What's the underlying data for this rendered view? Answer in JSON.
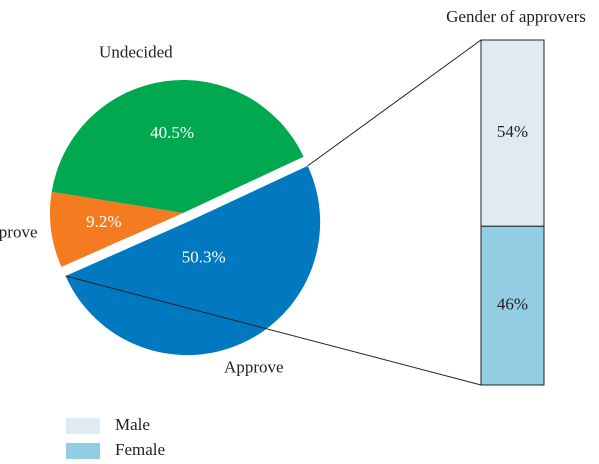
{
  "chart_data": [
    {
      "type": "pie",
      "categories": [
        "Approve",
        "Disapprove",
        "Undecided"
      ],
      "values": [
        50.3,
        9.2,
        40.5
      ],
      "value_labels": [
        "50.3%",
        "9.2%",
        "40.5%"
      ],
      "colors": [
        "#0079c1",
        "#f47b20",
        "#00a84f"
      ]
    },
    {
      "type": "stacked_bar",
      "title": "Gender of approvers",
      "series": [
        {
          "name": "Male",
          "color": "#dfeaf2",
          "values": [
            54
          ],
          "value_labels": [
            "54%"
          ]
        },
        {
          "name": "Female",
          "color": "#92cde3",
          "values": [
            46
          ],
          "value_labels": [
            "46%"
          ]
        }
      ]
    }
  ]
}
